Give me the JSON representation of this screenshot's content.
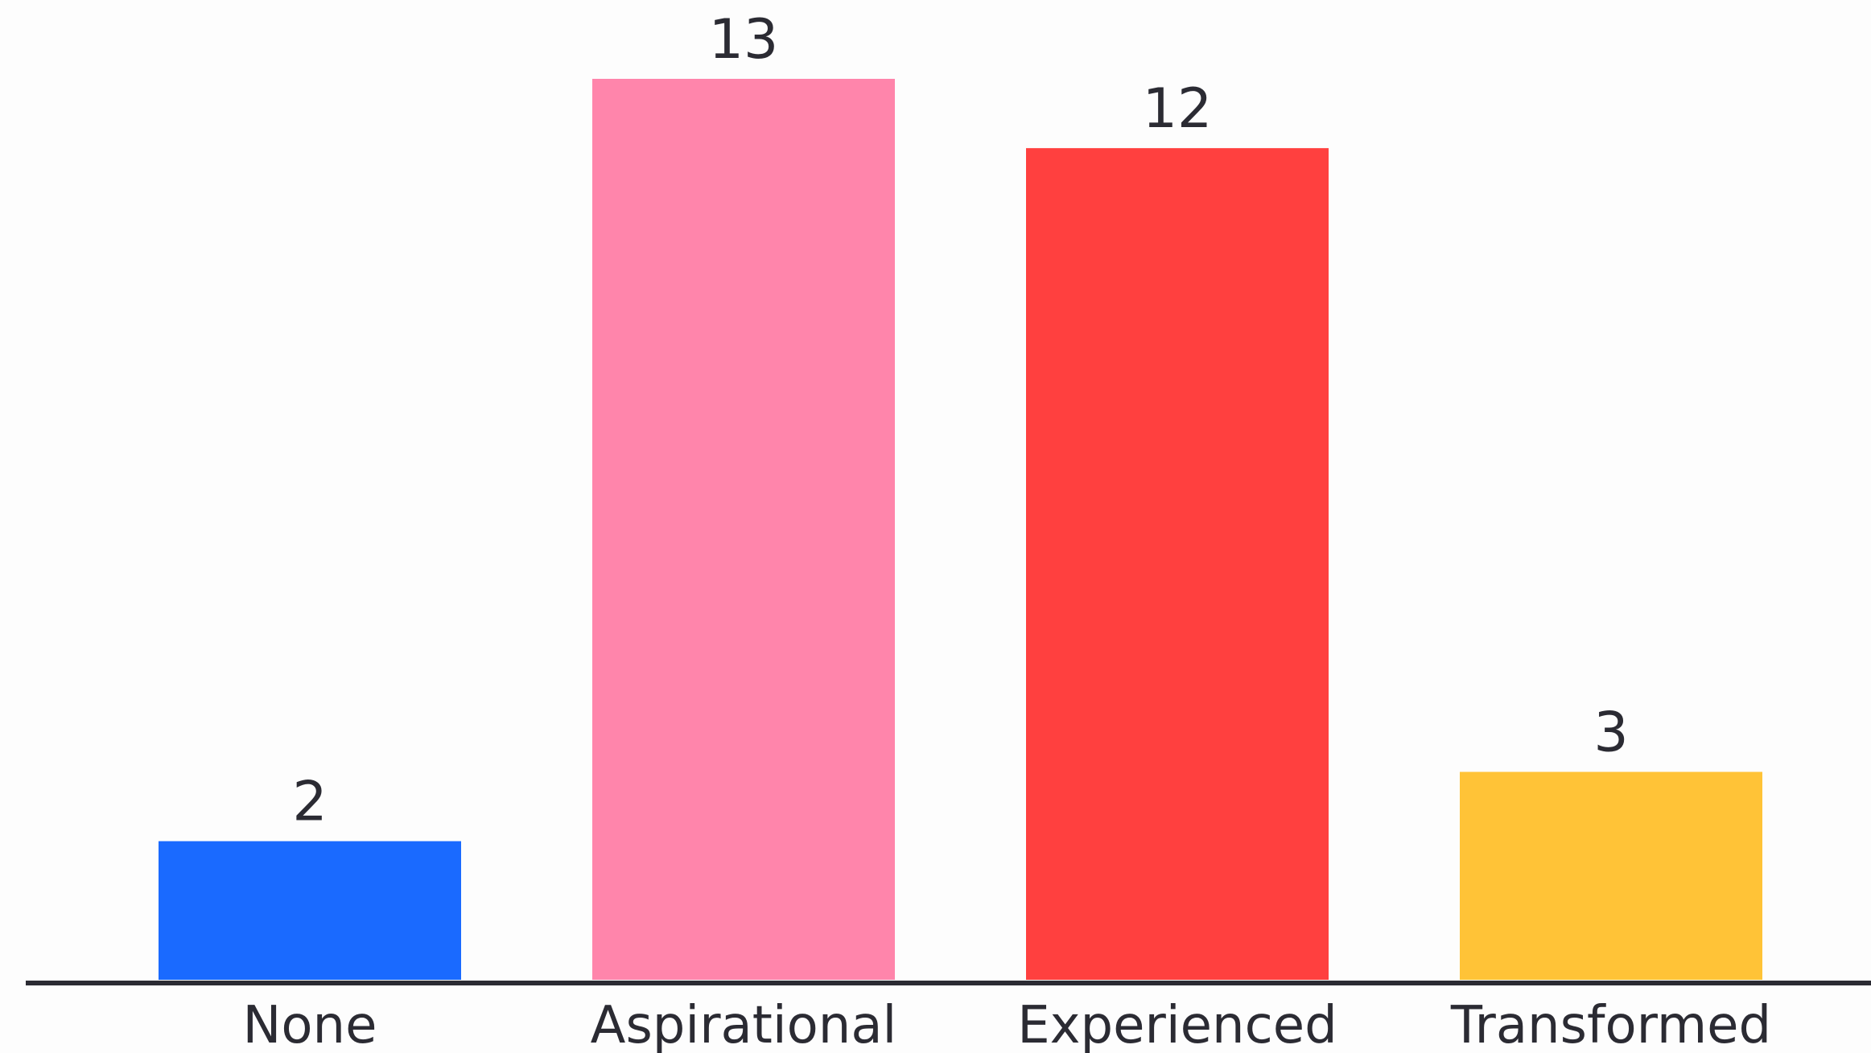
{
  "chart_data": {
    "type": "bar",
    "title": "",
    "xlabel": "",
    "ylabel": "",
    "categories": [
      "None",
      "Aspirational",
      "Experienced",
      "Transformed"
    ],
    "values": [
      2,
      13,
      12,
      3
    ],
    "value_labels": [
      "2",
      "13",
      "12",
      "3"
    ],
    "colors": [
      "#1a6aff",
      "#ff85ab",
      "#ff403f",
      "#ffc337"
    ],
    "axis_color": "#2b2b33",
    "ylim": [
      0,
      13
    ],
    "grid": false,
    "legend": "none"
  }
}
